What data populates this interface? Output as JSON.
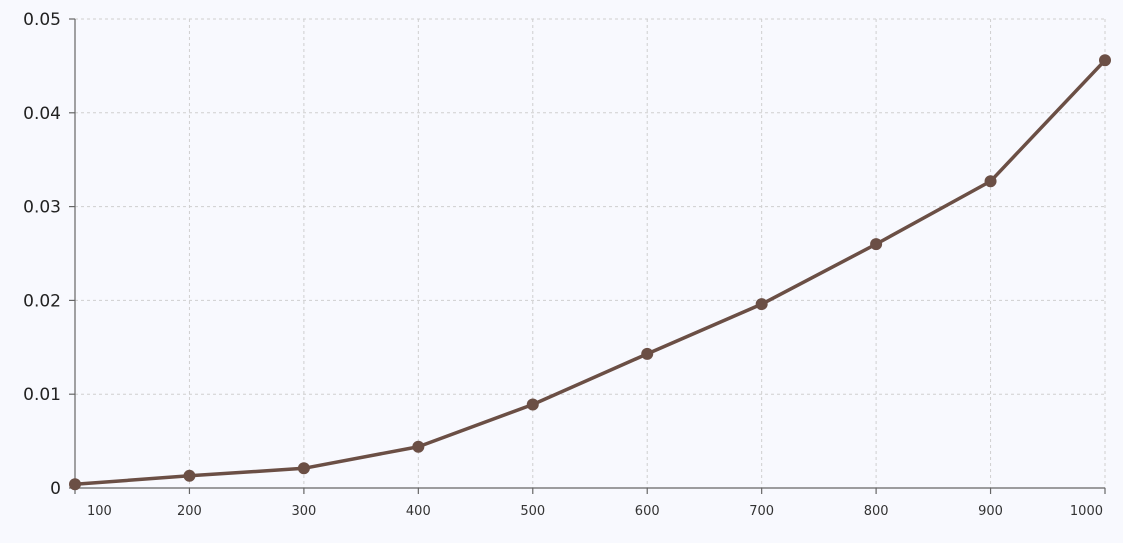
{
  "chart_data": {
    "type": "line",
    "title": "",
    "xlabel": "",
    "ylabel": "",
    "x": [
      100,
      200,
      300,
      400,
      500,
      600,
      700,
      800,
      900,
      1000
    ],
    "xlim": [
      100,
      1000
    ],
    "ylim": [
      0,
      0.05
    ],
    "x_tick_labels": [
      "100",
      "200",
      "300",
      "400",
      "500",
      "600",
      "700",
      "800",
      "900",
      "1000"
    ],
    "y_ticks": [
      0,
      0.01,
      0.02,
      0.03,
      0.04,
      0.05
    ],
    "y_tick_labels": [
      "0",
      "0.01",
      "0.02",
      "0.03",
      "0.04",
      "0.05"
    ],
    "grid": true,
    "legend": "none",
    "series": [
      {
        "values": [
          0.0004,
          0.0013,
          0.0021,
          0.0044,
          0.0089,
          0.0143,
          0.0196,
          0.026,
          0.0327,
          0.0456
        ],
        "color": "#6b4f45"
      }
    ]
  }
}
